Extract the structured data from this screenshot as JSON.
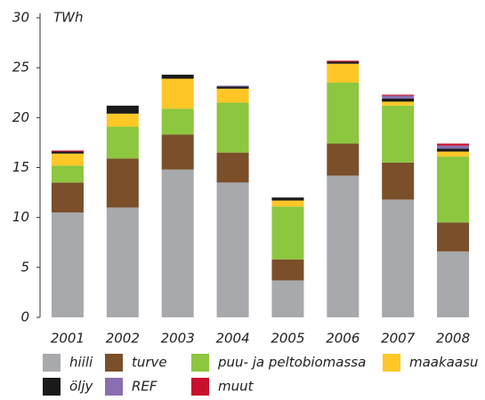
{
  "chart_data": {
    "type": "stacked_bar",
    "y_label": "TWh",
    "categories": [
      "2001",
      "2002",
      "2003",
      "2004",
      "2005",
      "2006",
      "2007",
      "2008"
    ],
    "series": [
      {
        "name": "hiili",
        "color": "#a7a9ac",
        "values": [
          10.5,
          11.0,
          14.8,
          13.5,
          3.7,
          14.2,
          11.8,
          6.6
        ]
      },
      {
        "name": "turve",
        "color": "#7a4f2a",
        "values": [
          3.0,
          4.9,
          3.5,
          3.0,
          2.1,
          3.2,
          3.7,
          2.9
        ]
      },
      {
        "name": "puu- ja peltobiomassa",
        "color": "#8dc63f",
        "values": [
          1.7,
          3.2,
          2.6,
          5.0,
          5.3,
          6.1,
          5.7,
          6.6
        ]
      },
      {
        "name": "maakaasu",
        "color": "#ffc726",
        "values": [
          1.2,
          1.3,
          3.0,
          1.4,
          0.6,
          1.9,
          0.4,
          0.5
        ]
      },
      {
        "name": "öljy",
        "color": "#1a1a1a",
        "values": [
          0.2,
          0.8,
          0.4,
          0.2,
          0.3,
          0.2,
          0.3,
          0.3
        ]
      },
      {
        "name": "REF",
        "color": "#8a6fb0",
        "values": [
          0,
          0,
          0,
          0.1,
          0,
          0,
          0.3,
          0.3
        ]
      },
      {
        "name": "muut",
        "color": "#c8102e",
        "values": [
          0.1,
          0,
          0,
          0,
          0,
          0.1,
          0.1,
          0.2
        ]
      }
    ],
    "ylim": [
      0,
      30
    ],
    "yticks": [
      0,
      5,
      10,
      15,
      20,
      25,
      30
    ],
    "grid": false,
    "legend": "bottom"
  }
}
